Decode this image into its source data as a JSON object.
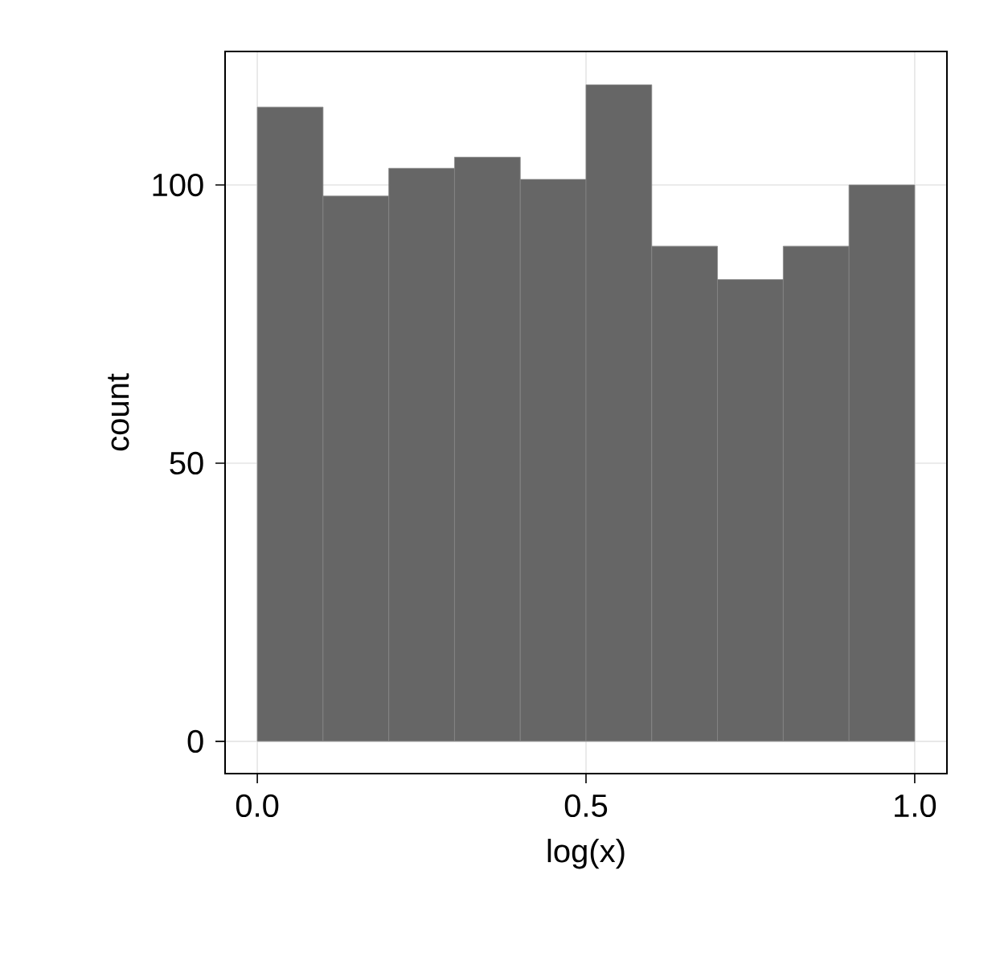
{
  "chart_data": {
    "type": "histogram",
    "xlabel": "log(x)",
    "ylabel": "count",
    "bins": [
      0,
      0.1,
      0.2,
      0.3,
      0.4,
      0.5,
      0.6,
      0.7,
      0.8,
      0.9,
      1.0
    ],
    "values": [
      114,
      98,
      103,
      105,
      101,
      118,
      89,
      83,
      89,
      100
    ],
    "color": "#666666",
    "xlim": [
      -0.049,
      1.049
    ],
    "ylim": [
      -5.8,
      124
    ],
    "xticks": [
      {
        "value": 0,
        "label": "0.0"
      },
      {
        "value": 0.5,
        "label": "0.5"
      },
      {
        "value": 1,
        "label": "1.0"
      }
    ],
    "yticks": [
      0,
      50,
      100
    ],
    "grid": true
  }
}
